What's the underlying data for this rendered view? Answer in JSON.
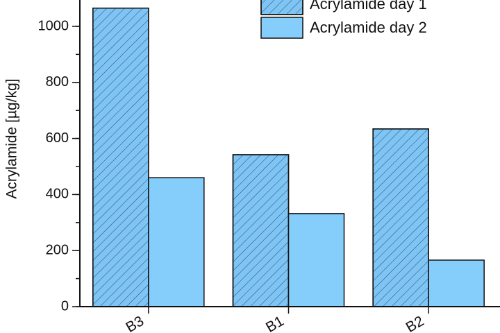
{
  "chart_data": {
    "type": "bar",
    "y_label": "Acrylamide [µg/kg]",
    "categories": [
      "B3",
      "B1",
      "B2"
    ],
    "series": [
      {
        "name": "Acrylamide day 1",
        "color": "#7ec4f5",
        "hatch": true,
        "values": [
          1065,
          542,
          634
        ]
      },
      {
        "name": "Acrylamide day 2",
        "color": "#85cdfb",
        "hatch": false,
        "values": [
          460,
          332,
          166
        ]
      }
    ],
    "ylim": [
      0,
      1094
    ],
    "yticks": [
      0,
      200,
      400,
      600,
      800,
      1000
    ],
    "y_minor_step": 100,
    "grid": false,
    "legend": "top-right"
  }
}
